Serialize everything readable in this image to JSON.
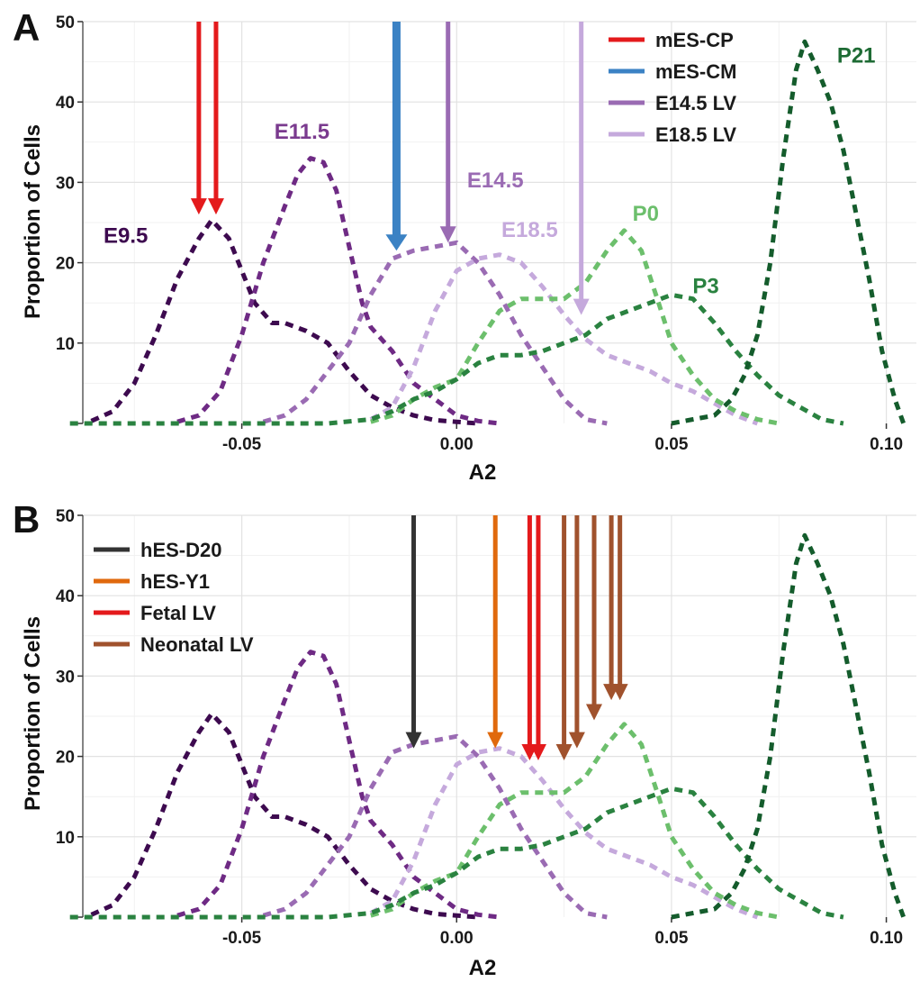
{
  "chart_data": [
    {
      "panel": "A",
      "type": "line",
      "xlabel": "A2",
      "ylabel": "Proportion of Cells",
      "xlim": [
        -0.087,
        0.107
      ],
      "ylim": [
        0,
        50
      ],
      "xticks": [
        -0.05,
        0.0,
        0.05,
        0.1
      ],
      "xtick_labels": [
        "-0.05",
        "0.00",
        "0.05",
        "0.10"
      ],
      "yticks": [
        10,
        20,
        30,
        40,
        50
      ],
      "ytick_labels": [
        "10",
        "20",
        "30",
        "40",
        "50"
      ],
      "grid": true,
      "legend_position": "top-right",
      "series": [
        {
          "name": "E9.5",
          "color": "#3d0a4f",
          "x": [
            -0.085,
            -0.08,
            -0.075,
            -0.07,
            -0.065,
            -0.06,
            -0.057,
            -0.053,
            -0.05,
            -0.047,
            -0.043,
            -0.04,
            -0.035,
            -0.03,
            -0.025,
            -0.02,
            -0.015,
            -0.01,
            -0.005,
            0.0,
            0.005
          ],
          "y": [
            0.3,
            1.5,
            5,
            11,
            18,
            23,
            25.3,
            23,
            19,
            15,
            12.5,
            12.5,
            11.5,
            10,
            6.5,
            3.5,
            2,
            1,
            0.4,
            0.2,
            0
          ]
        },
        {
          "name": "E11.5",
          "color": "#6e2a84",
          "x": [
            -0.065,
            -0.06,
            -0.055,
            -0.05,
            -0.045,
            -0.04,
            -0.037,
            -0.034,
            -0.031,
            -0.028,
            -0.025,
            -0.022,
            -0.02,
            -0.015,
            -0.01,
            -0.005,
            0.0,
            0.005,
            0.01
          ],
          "y": [
            0.2,
            1,
            4,
            11,
            20,
            27,
            31,
            33,
            32.5,
            29,
            22,
            15,
            12,
            9,
            5,
            3,
            1,
            0.3,
            0
          ]
        },
        {
          "name": "E14.5",
          "color": "#9a6bb3",
          "x": [
            -0.045,
            -0.04,
            -0.035,
            -0.03,
            -0.025,
            -0.02,
            -0.015,
            -0.01,
            -0.005,
            0.0,
            0.005,
            0.01,
            0.015,
            0.02,
            0.025,
            0.03,
            0.035
          ],
          "y": [
            0.2,
            1,
            3,
            6.5,
            10,
            16,
            20.5,
            21.5,
            22,
            22.5,
            20,
            16,
            11,
            7,
            3,
            0.5,
            0
          ]
        },
        {
          "name": "E18.5",
          "color": "#c5a9dc",
          "x": [
            -0.02,
            -0.015,
            -0.01,
            -0.005,
            0.0,
            0.005,
            0.01,
            0.015,
            0.02,
            0.025,
            0.03,
            0.035,
            0.04,
            0.045,
            0.05,
            0.055,
            0.06,
            0.065,
            0.07
          ],
          "y": [
            0.5,
            2,
            7,
            14,
            19,
            20.5,
            21,
            20,
            17,
            13.5,
            10.5,
            8.5,
            7.5,
            6.5,
            5,
            4,
            2.5,
            1,
            0
          ]
        },
        {
          "name": "P0",
          "color": "#6cbf6c",
          "x": [
            -0.02,
            -0.015,
            -0.01,
            -0.005,
            0.0,
            0.005,
            0.01,
            0.015,
            0.02,
            0.025,
            0.03,
            0.035,
            0.039,
            0.043,
            0.047,
            0.05,
            0.055,
            0.06,
            0.065,
            0.07,
            0.075
          ],
          "y": [
            0.2,
            1,
            3,
            4.5,
            5.5,
            10,
            14,
            15.5,
            15.5,
            15.5,
            17.5,
            21.5,
            24,
            21.5,
            15,
            10,
            6,
            3,
            1.5,
            0.5,
            0
          ]
        },
        {
          "name": "P3",
          "color": "#2a8240",
          "x": [
            -0.09,
            -0.06,
            -0.03,
            -0.02,
            -0.015,
            -0.01,
            -0.005,
            0.0,
            0.005,
            0.01,
            0.015,
            0.02,
            0.025,
            0.03,
            0.035,
            0.04,
            0.045,
            0.05,
            0.055,
            0.06,
            0.065,
            0.07,
            0.075,
            0.08,
            0.085,
            0.09
          ],
          "y": [
            0,
            0,
            0,
            0.5,
            1.5,
            3,
            4,
            5.5,
            7.5,
            8.5,
            8.5,
            9,
            10,
            11,
            13,
            14,
            15,
            16,
            15.5,
            12.5,
            9,
            6,
            3.5,
            2,
            0.5,
            0
          ]
        },
        {
          "name": "P21",
          "color": "#145c2c",
          "x": [
            0.05,
            0.055,
            0.06,
            0.064,
            0.067,
            0.07,
            0.073,
            0.076,
            0.079,
            0.081,
            0.084,
            0.087,
            0.09,
            0.093,
            0.096,
            0.099,
            0.102,
            0.104
          ],
          "y": [
            0,
            0.5,
            1,
            3,
            6,
            11,
            20,
            33,
            44,
            47.5,
            44,
            40,
            34,
            26,
            18,
            9,
            3,
            0
          ]
        }
      ],
      "curve_labels": [
        {
          "text": "E9.5",
          "x": -0.077,
          "y": 22.5,
          "color": "#3d0a4f"
        },
        {
          "text": "E11.5",
          "x": -0.036,
          "y": 35.4,
          "color": "#7a3a8e"
        },
        {
          "text": "E14.5",
          "x": 0.009,
          "y": 29.4,
          "color": "#9a6bb3"
        },
        {
          "text": "E18.5",
          "x": 0.017,
          "y": 23.2,
          "color": "#c5a9dc"
        },
        {
          "text": "P0",
          "x": 0.044,
          "y": 25.2,
          "color": "#6cbf6c"
        },
        {
          "text": "P3",
          "x": 0.058,
          "y": 16.2,
          "color": "#2a8240"
        },
        {
          "text": "P21",
          "x": 0.093,
          "y": 44.9,
          "color": "#1e6b34"
        }
      ],
      "arrows": [
        {
          "group": "mES-CP",
          "x": -0.06,
          "y_tip": 26
        },
        {
          "group": "mES-CM",
          "x": -0.014,
          "y_tip": 21.5
        },
        {
          "group": "mES-CP",
          "x": -0.056,
          "y_tip": 26
        },
        {
          "group": "E14.5 LV",
          "x": -0.002,
          "y_tip": 22.5
        },
        {
          "group": "E18.5 LV",
          "x": 0.029,
          "y_tip": 13.5
        }
      ],
      "legend": [
        {
          "name": "mES-CP",
          "color": "#e41a1c"
        },
        {
          "name": "mES-CM",
          "color": "#3b82c4"
        },
        {
          "name": "E14.5 LV",
          "color": "#9a6bb3"
        },
        {
          "name": "E18.5 LV",
          "color": "#c5a9dc"
        }
      ]
    },
    {
      "panel": "B",
      "type": "line",
      "xlabel": "A2",
      "ylabel": "Proportion of Cells",
      "xlim": [
        -0.087,
        0.107
      ],
      "ylim": [
        0,
        50
      ],
      "xticks": [
        -0.05,
        0.0,
        0.05,
        0.1
      ],
      "xtick_labels": [
        "-0.05",
        "0.00",
        "0.05",
        "0.10"
      ],
      "yticks": [
        10,
        20,
        30,
        40,
        50
      ],
      "ytick_labels": [
        "10",
        "20",
        "30",
        "40",
        "50"
      ],
      "grid": true,
      "legend_position": "top-left",
      "curves_same_as_panel": "A",
      "arrows": [
        {
          "group": "hES-D20",
          "x": -0.01,
          "y_tip": 21
        },
        {
          "group": "hES-Y1",
          "x": 0.009,
          "y_tip": 21
        },
        {
          "group": "Fetal LV",
          "x": 0.017,
          "y_tip": 19.5
        },
        {
          "group": "Fetal LV",
          "x": 0.019,
          "y_tip": 19.5
        },
        {
          "group": "Neonatal LV",
          "x": 0.025,
          "y_tip": 19.5
        },
        {
          "group": "Neonatal LV",
          "x": 0.028,
          "y_tip": 21
        },
        {
          "group": "Neonatal LV",
          "x": 0.032,
          "y_tip": 24.5
        },
        {
          "group": "Neonatal LV",
          "x": 0.036,
          "y_tip": 27
        },
        {
          "group": "Neonatal LV",
          "x": 0.038,
          "y_tip": 27
        }
      ],
      "legend": [
        {
          "name": "hES-D20",
          "color": "#333333"
        },
        {
          "name": "hES-Y1",
          "color": "#e0690d"
        },
        {
          "name": "Fetal LV",
          "color": "#e41a1c"
        },
        {
          "name": "Neonatal LV",
          "color": "#a0522d"
        }
      ]
    }
  ]
}
